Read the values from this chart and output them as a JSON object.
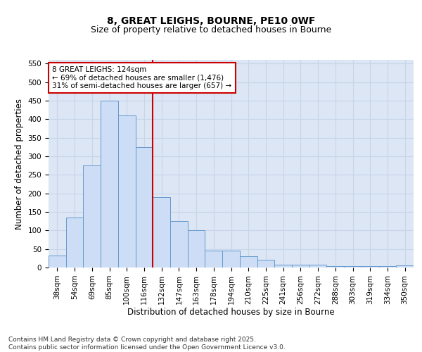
{
  "title": "8, GREAT LEIGHS, BOURNE, PE10 0WF",
  "subtitle": "Size of property relative to detached houses in Bourne",
  "xlabel": "Distribution of detached houses by size in Bourne",
  "ylabel": "Number of detached properties",
  "categories": [
    "38sqm",
    "54sqm",
    "69sqm",
    "85sqm",
    "100sqm",
    "116sqm",
    "132sqm",
    "147sqm",
    "163sqm",
    "178sqm",
    "194sqm",
    "210sqm",
    "225sqm",
    "241sqm",
    "256sqm",
    "272sqm",
    "288sqm",
    "303sqm",
    "319sqm",
    "334sqm",
    "350sqm"
  ],
  "values": [
    33,
    135,
    275,
    450,
    410,
    325,
    190,
    125,
    100,
    45,
    45,
    30,
    20,
    8,
    8,
    8,
    3,
    3,
    3,
    3,
    5
  ],
  "bar_color": "#ccddf5",
  "bar_edge_color": "#6699cc",
  "grid_color": "#c8d4e8",
  "background_color": "#dce6f5",
  "vline_color": "#cc0000",
  "annotation_text": "8 GREAT LEIGHS: 124sqm\n← 69% of detached houses are smaller (1,476)\n31% of semi-detached houses are larger (657) →",
  "annotation_box_color": "#ffffff",
  "annotation_box_edge": "#cc0000",
  "ylim": [
    0,
    560
  ],
  "yticks": [
    0,
    50,
    100,
    150,
    200,
    250,
    300,
    350,
    400,
    450,
    500,
    550
  ],
  "footer": "Contains HM Land Registry data © Crown copyright and database right 2025.\nContains public sector information licensed under the Open Government Licence v3.0.",
  "title_fontsize": 10,
  "subtitle_fontsize": 9,
  "axis_label_fontsize": 8.5,
  "tick_fontsize": 7.5,
  "annotation_fontsize": 7.5,
  "footer_fontsize": 6.5
}
